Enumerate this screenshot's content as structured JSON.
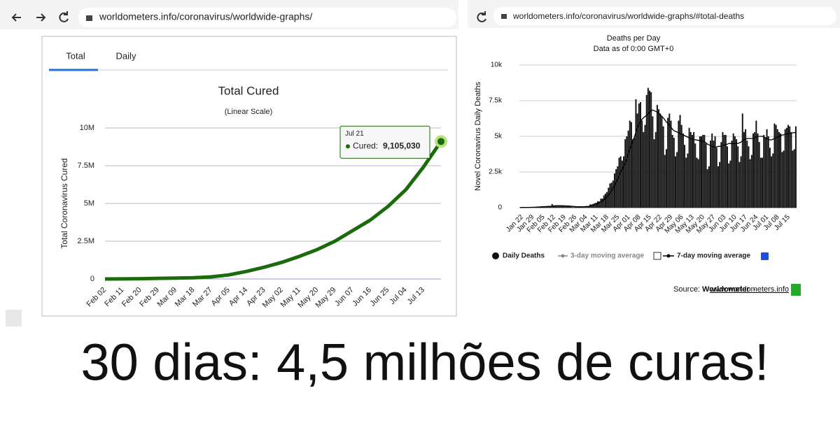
{
  "browser": [
    {
      "url": "worldometers.info/coronavirus/worldwide-graphs/"
    },
    {
      "url": "worldometers.info/coronavirus/worldwide-graphs/#total-deaths"
    }
  ],
  "caption": "30 dias: 4,5 milhões de curas!",
  "chart_data": [
    {
      "type": "line",
      "tabs": [
        "Total",
        "Daily"
      ],
      "title": "Total Cured",
      "subtitle": "(Linear Scale)",
      "y_label": "Total Coronavirus Cured",
      "categories": [
        "Feb 02",
        "Feb 11",
        "Feb 20",
        "Feb 29",
        "Mar 09",
        "Mar 18",
        "Mar 27",
        "Apr 05",
        "Apr 14",
        "Apr 23",
        "May 02",
        "May 11",
        "May 20",
        "May 29",
        "Jun 07",
        "Jun 16",
        "Jun 25",
        "Jul 04",
        "Jul 13",
        null
      ],
      "series": [
        {
          "name": "Cured",
          "color": "#1b6b0c",
          "values": [
            500,
            5000,
            20000,
            40000,
            62000,
            85000,
            140000,
            270000,
            500000,
            780000,
            1100000,
            1500000,
            1950000,
            2500000,
            3200000,
            3900000,
            4800000,
            5900000,
            7400000,
            9105030
          ]
        }
      ],
      "ylim": [
        0,
        10000000
      ],
      "yticks": [
        0,
        {
          "value": 2500000,
          "label": "2.5M"
        },
        {
          "value": 5000000,
          "label": "5M"
        },
        {
          "value": 7500000,
          "label": "7.5M"
        },
        {
          "value": 10000000,
          "label": "10M"
        }
      ],
      "grid": true,
      "tooltip": {
        "date": "Jul 21",
        "label": "Cured:",
        "value": 9105030,
        "value_label": "9,105,030"
      }
    },
    {
      "type": "bar",
      "title": "Deaths per Day",
      "subtitle": "Data as of 0:00 GMT+0",
      "y_label": "Novel Coronavirus Daily Deaths",
      "categories": [
        "Jan 22",
        null,
        null,
        null,
        null,
        null,
        null,
        "Jan 29",
        null,
        null,
        null,
        null,
        null,
        null,
        "Feb 05",
        null,
        null,
        null,
        null,
        null,
        null,
        "Feb 12",
        null,
        null,
        null,
        null,
        null,
        null,
        "Feb 19",
        null,
        null,
        null,
        null,
        null,
        null,
        "Feb 26",
        null,
        null,
        null,
        null,
        null,
        null,
        "Mar 04",
        null,
        null,
        null,
        null,
        null,
        null,
        "Mar 11",
        null,
        null,
        null,
        null,
        null,
        null,
        "Mar 18",
        null,
        null,
        null,
        null,
        null,
        null,
        "Mar 25",
        null,
        null,
        null,
        null,
        null,
        null,
        "Apr 01",
        null,
        null,
        null,
        null,
        null,
        null,
        "Apr 08",
        null,
        null,
        null,
        null,
        null,
        null,
        "Apr 15",
        null,
        null,
        null,
        null,
        null,
        null,
        "Apr 22",
        null,
        null,
        null,
        null,
        null,
        null,
        "Apr 29",
        null,
        null,
        null,
        null,
        null,
        null,
        "May 06",
        null,
        null,
        null,
        null,
        null,
        null,
        "May 13",
        null,
        null,
        null,
        null,
        null,
        null,
        "May 20",
        null,
        null,
        null,
        null,
        null,
        null,
        "May 27",
        null,
        null,
        null,
        null,
        null,
        null,
        "Jun 03",
        null,
        null,
        null,
        null,
        null,
        null,
        "Jun 10",
        null,
        null,
        null,
        null,
        null,
        null,
        "Jun 17",
        null,
        null,
        null,
        null,
        null,
        null,
        "Jun 24",
        null,
        null,
        null,
        null,
        null,
        null,
        "Jul 01",
        null,
        null,
        null,
        null,
        null,
        null,
        "Jul 08",
        null,
        null,
        null,
        null,
        null,
        null,
        "Jul 15",
        null,
        null,
        null,
        null,
        null,
        null
      ],
      "series": [
        {
          "name": "Daily Deaths",
          "color": "#111111",
          "values": [
            17,
            8,
            16,
            15,
            24,
            26,
            26,
            38,
            43,
            46,
            45,
            57,
            64,
            66,
            73,
            73,
            86,
            89,
            97,
            108,
            97,
            254,
            121,
            143,
            142,
            106,
            98,
            136,
            115,
            118,
            109,
            97,
            150,
            71,
            64,
            37,
            58,
            64,
            67,
            73,
            70,
            81,
            95,
            107,
            102,
            104,
            231,
            221,
            268,
            316,
            343,
            450,
            437,
            628,
            640,
            862,
            985,
            1100,
            1400,
            1700,
            1750,
            1900,
            2400,
            2700,
            2900,
            3500,
            3600,
            3300,
            3600,
            4800,
            5000,
            5400,
            6100,
            6000,
            4800,
            4900,
            7600,
            6600,
            7300,
            7400,
            6100,
            5300,
            5800,
            7900,
            8400,
            8200,
            8100,
            6400,
            4800,
            5300,
            7200,
            6900,
            6600,
            6400,
            5700,
            3700,
            4100,
            6300,
            6600,
            6100,
            5100,
            4900,
            3600,
            3900,
            6100,
            6500,
            5800,
            5200,
            4400,
            3500,
            3800,
            5600,
            5300,
            5100,
            5300,
            4500,
            3500,
            3400,
            5000,
            5000,
            5100,
            5100,
            4500,
            2700,
            2900,
            4700,
            5200,
            4700,
            5000,
            4200,
            2900,
            3200,
            4600,
            5300,
            5100,
            5100,
            4300,
            3100,
            3300,
            4700,
            5200,
            5000,
            4800,
            4300,
            3200,
            3600,
            6600,
            5300,
            5500,
            4700,
            4300,
            3400,
            3700,
            5200,
            5300,
            6100,
            5200,
            4600,
            3500,
            3500,
            5100,
            4900,
            5500,
            5000,
            4200,
            3600,
            3800,
            5900,
            5800,
            5500,
            5300,
            5200,
            3900,
            4000,
            5500,
            5600,
            5800,
            5700,
            5300,
            4000,
            4100,
            5700
          ]
        },
        {
          "name": "7-day moving average",
          "color": "#000000",
          "type": "line",
          "values": [
            15,
            16,
            17,
            18,
            19,
            20,
            22,
            25,
            28,
            31,
            36,
            43,
            50,
            55,
            62,
            68,
            74,
            80,
            86,
            92,
            97,
            120,
            125,
            130,
            135,
            138,
            140,
            137,
            130,
            127,
            125,
            118,
            110,
            105,
            100,
            90,
            80,
            70,
            66,
            63,
            62,
            64,
            70,
            78,
            85,
            90,
            110,
            140,
            170,
            210,
            250,
            300,
            350,
            400,
            470,
            550,
            650,
            760,
            880,
            1020,
            1180,
            1350,
            1550,
            1800,
            2000,
            2250,
            2500,
            2700,
            2900,
            3150,
            3450,
            3800,
            4100,
            4400,
            4700,
            4950,
            5300,
            5600,
            5850,
            6050,
            6200,
            6300,
            6400,
            6450,
            6600,
            6700,
            6800,
            6850,
            6800,
            6750,
            6700,
            6600,
            6500,
            6400,
            6300,
            6150,
            6000,
            5900,
            5750,
            5650,
            5500,
            5400,
            5350,
            5300,
            5250,
            5200,
            5150,
            5100,
            5050,
            5000,
            4950,
            4900,
            4850,
            4800,
            4780,
            4760,
            4740,
            4720,
            4700,
            4680,
            4660,
            4600,
            4550,
            4450,
            4400,
            4350,
            4300,
            4250,
            4250,
            4250,
            4300,
            4300,
            4300,
            4350,
            4400,
            4400,
            4450,
            4500,
            4500,
            4500,
            4500,
            4500,
            4500,
            4500,
            4550,
            4600,
            4700,
            4750,
            4800,
            4850,
            4850,
            4850,
            4850,
            4850,
            4900,
            4950,
            5000,
            5000,
            5000,
            5000,
            4950,
            4900,
            4850,
            4800,
            4750,
            4750,
            4800,
            4850,
            4900,
            4950,
            5000,
            5050,
            5100,
            5100,
            5150,
            5150,
            5200,
            5200,
            5200,
            5250,
            5250,
            5300
          ]
        }
      ],
      "hidden_series": [
        {
          "name": "3-day moving average",
          "color": "#888888"
        }
      ],
      "ylim": [
        0,
        10000
      ],
      "yticks": [
        0,
        {
          "value": 2500,
          "label": "2.5k"
        },
        {
          "value": 5000,
          "label": "5k"
        },
        {
          "value": 7500,
          "label": "7.5k"
        },
        {
          "value": 10000,
          "label": "10k"
        }
      ],
      "grid": true,
      "source": {
        "prefix": "Source:",
        "name": "Worldometer",
        "separator": "-",
        "link": "www.worldometers.info"
      }
    }
  ]
}
